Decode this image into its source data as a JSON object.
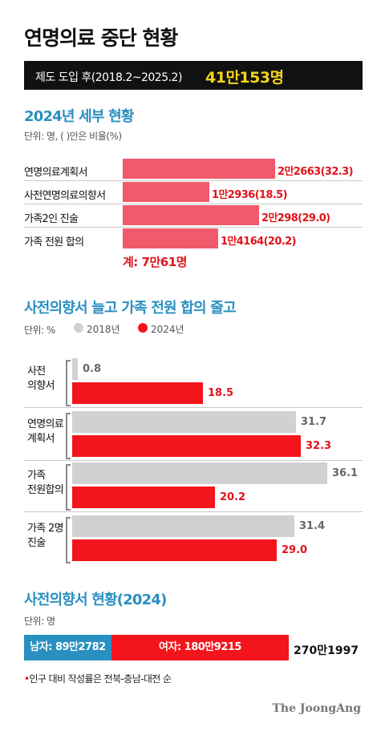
{
  "title": "연명의료 중단 현황",
  "banner": {
    "label": "제도 도입 후(2018.2~2025.2)",
    "value": "41만153명"
  },
  "section1": {
    "title": "2024년 세부 현황",
    "unit": "단위: 명, ( )안은 비율(%)",
    "total": "계: 7만61명"
  },
  "section2": {
    "title": "사전의향서 늘고 가족 전원 합의 줄고",
    "unit": "단위: %",
    "legend_2018": "2018년",
    "legend_2024": "2024년"
  },
  "section3": {
    "title": "사전의향서 현황(2024)",
    "unit": "단위: 명",
    "male_label": "남자: 89만2782",
    "female_label": "여자: 180만9215",
    "total": "270만1997",
    "note": "인구 대비 작성률은 전북-충남-대전 순"
  },
  "brand": "The JoongAng",
  "colors": {
    "accent_blue": "#2a8fc1",
    "red": "#f4141b",
    "pink": "#f15a6a",
    "gray": "#cfd1d2",
    "yellow": "#f5d21a"
  },
  "chart_data": [
    {
      "type": "bar",
      "title": "2024년 세부 현황",
      "categories": [
        "연명의료계획서",
        "사전연명의료의향서",
        "가족2인 진술",
        "가족 전원 합의"
      ],
      "values": [
        22663,
        12936,
        20298,
        14164
      ],
      "percent": [
        32.3,
        18.5,
        29.0,
        20.2
      ],
      "value_labels": [
        "2만2663(32.3)",
        "1만2936(18.5)",
        "2만298(29.0)",
        "1만4164(20.2)"
      ],
      "unit": "명",
      "total": 70061
    },
    {
      "type": "bar",
      "title": "사전의향서 늘고 가족 전원 합의 줄고",
      "categories": [
        "사전\n의향서",
        "연명의료\n계획서",
        "가족\n전원합의",
        "가족 2명\n진술"
      ],
      "series": [
        {
          "name": "2018년",
          "values": [
            0.8,
            31.7,
            36.1,
            31.4
          ]
        },
        {
          "name": "2024년",
          "values": [
            18.5,
            32.3,
            20.2,
            29.0
          ]
        }
      ],
      "unit": "%",
      "xlim": [
        0,
        36.1
      ]
    },
    {
      "type": "bar",
      "title": "사전의향서 현황(2024)",
      "categories": [
        "남자",
        "여자"
      ],
      "values": [
        892782,
        1809215
      ],
      "total": 2701997,
      "unit": "명"
    }
  ]
}
